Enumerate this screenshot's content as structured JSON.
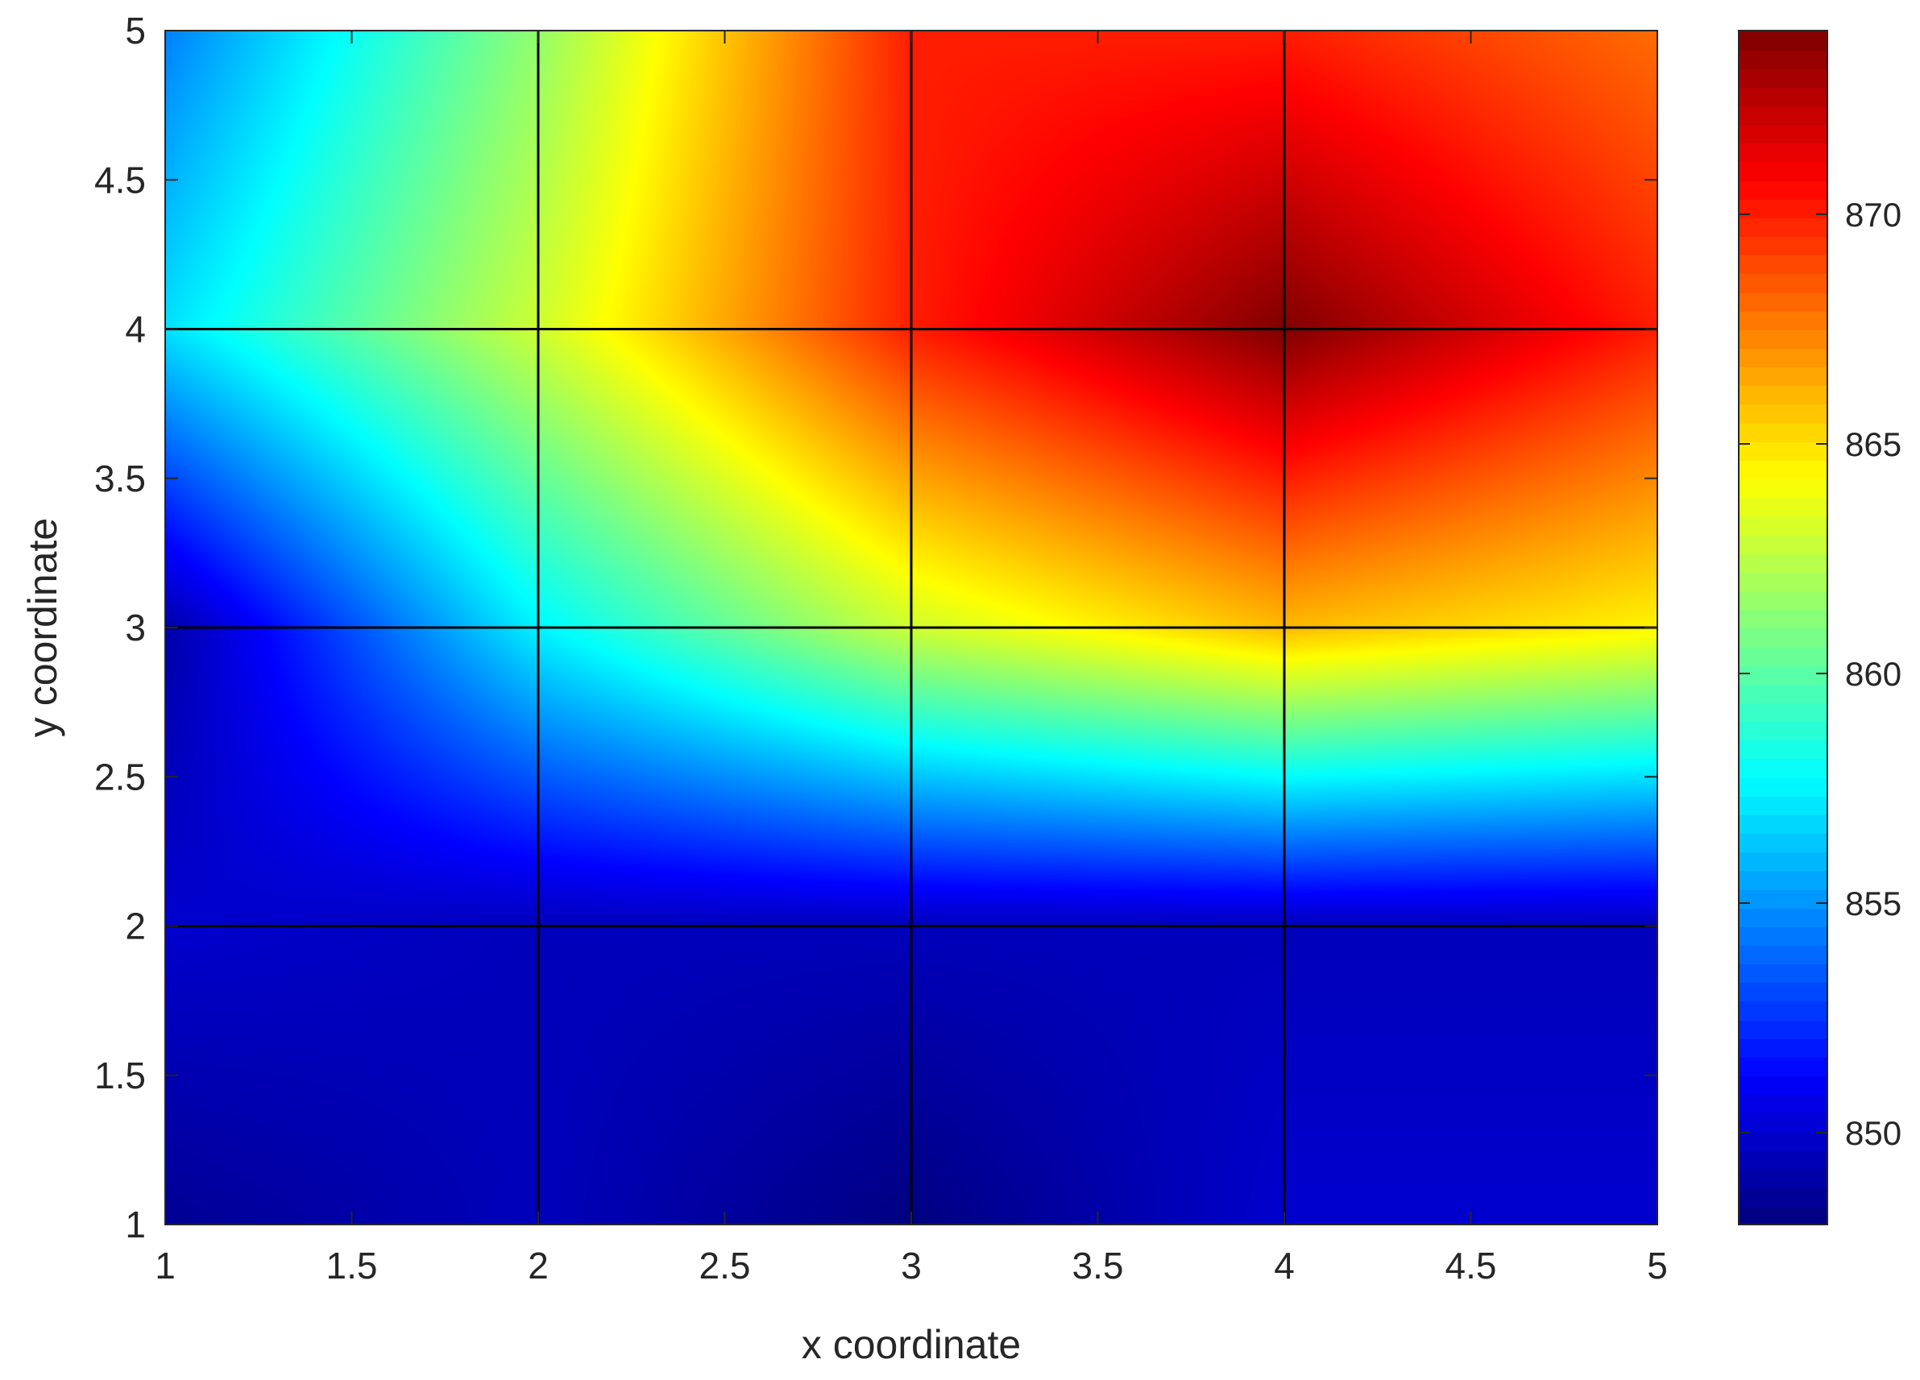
{
  "chart_data": {
    "type": "heatmap",
    "xlabel": "x coordinate",
    "ylabel": "y coordinate",
    "xlim": [
      1,
      5
    ],
    "ylim": [
      1,
      5
    ],
    "x": [
      1,
      2,
      3,
      4,
      5
    ],
    "y": [
      1,
      2,
      3,
      4,
      5
    ],
    "z": [
      [
        848.5,
        849.5,
        848.0,
        850.0,
        850.0
      ],
      [
        850.0,
        849.5,
        849.5,
        849.5,
        849.5
      ],
      [
        849.0,
        857.5,
        863.0,
        866.0,
        864.5
      ],
      [
        857.0,
        863.0,
        870.0,
        874.0,
        870.0
      ],
      [
        854.5,
        861.5,
        870.0,
        870.0,
        868.0
      ]
    ],
    "colormap": "jet",
    "clim": [
      848,
      874
    ],
    "xticks": [
      "1",
      "1.5",
      "2",
      "2.5",
      "3",
      "3.5",
      "4",
      "4.5",
      "5"
    ],
    "yticks": [
      "1",
      "1.5",
      "2",
      "2.5",
      "3",
      "3.5",
      "4",
      "4.5",
      "5"
    ],
    "colorbar": {
      "ticks": [
        850,
        855,
        860,
        865,
        870
      ],
      "tick_labels": [
        "850",
        "855",
        "860",
        "865",
        "870"
      ]
    },
    "grid": true,
    "grid_color": "#000000"
  }
}
